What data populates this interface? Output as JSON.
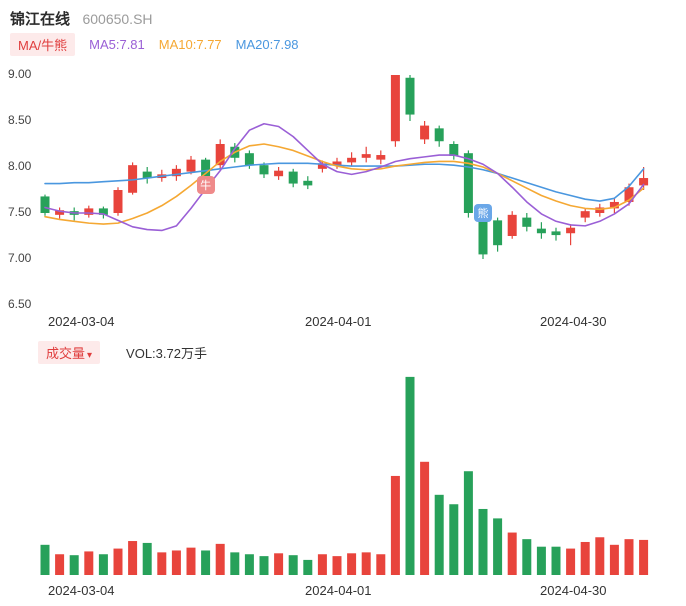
{
  "header": {
    "title": "锦江在线",
    "code": "600650.SH"
  },
  "legend": {
    "toggle_label": "MA/牛熊",
    "ma5": "MA5:7.81",
    "ma10": "MA10:7.77",
    "ma20": "MA20:7.98"
  },
  "volume_header": {
    "label": "成交量",
    "caret": "▾",
    "value": "VOL:3.72万手"
  },
  "colors": {
    "up": "#e8443c",
    "down": "#27a15a",
    "ma5": "#9a5fd6",
    "ma10": "#f5a833",
    "ma20": "#4a97df",
    "badge_bg": "#fdeaea",
    "badge_text": "#e03e3e",
    "bull_bg": "#ef8a8a",
    "bear_bg": "#6aa7e8"
  },
  "chart_data": {
    "type": "candlestick",
    "title": "锦江在线 600650.SH 日K线",
    "y_ticks": [
      "9.00",
      "8.50",
      "8.00",
      "7.50",
      "7.00",
      "6.50"
    ],
    "y_range": [
      6.5,
      9.0
    ],
    "x_labels": [
      "2024-03-04",
      "2024-04-01",
      "2024-04-30"
    ],
    "legend_entries": [
      "MA5",
      "MA10",
      "MA20"
    ],
    "candles_format": "[open, close, high, low] — red = up, green = down",
    "candles": [
      [
        7.68,
        7.5,
        7.7,
        7.47
      ],
      [
        7.48,
        7.53,
        7.56,
        7.44
      ],
      [
        7.52,
        7.48,
        7.56,
        7.42
      ],
      [
        7.48,
        7.55,
        7.58,
        7.45
      ],
      [
        7.55,
        7.48,
        7.57,
        7.44
      ],
      [
        7.5,
        7.75,
        7.78,
        7.47
      ],
      [
        7.72,
        8.02,
        8.05,
        7.7
      ],
      [
        7.95,
        7.88,
        8.0,
        7.82
      ],
      [
        7.88,
        7.92,
        7.97,
        7.84
      ],
      [
        7.9,
        7.98,
        8.02,
        7.85
      ],
      [
        7.95,
        8.08,
        8.12,
        7.92
      ],
      [
        8.08,
        7.88,
        8.1,
        7.8
      ],
      [
        8.02,
        8.25,
        8.3,
        7.98
      ],
      [
        8.22,
        8.1,
        8.26,
        8.05
      ],
      [
        8.15,
        8.02,
        8.18,
        7.98
      ],
      [
        8.02,
        7.92,
        8.05,
        7.88
      ],
      [
        7.9,
        7.96,
        8.0,
        7.86
      ],
      [
        7.95,
        7.82,
        7.98,
        7.78
      ],
      [
        7.85,
        7.8,
        7.9,
        7.76
      ],
      [
        7.98,
        8.04,
        8.07,
        7.94
      ],
      [
        8.02,
        8.06,
        8.1,
        7.98
      ],
      [
        8.05,
        8.1,
        8.16,
        8.01
      ],
      [
        8.1,
        8.14,
        8.22,
        8.05
      ],
      [
        8.08,
        8.13,
        8.18,
        8.03
      ],
      [
        8.28,
        9.0,
        9.0,
        8.22
      ],
      [
        8.97,
        8.57,
        9.0,
        8.5
      ],
      [
        8.3,
        8.45,
        8.5,
        8.25
      ],
      [
        8.42,
        8.28,
        8.45,
        8.22
      ],
      [
        8.25,
        8.12,
        8.28,
        8.08
      ],
      [
        8.15,
        7.5,
        8.18,
        7.45
      ],
      [
        7.45,
        7.05,
        7.48,
        7.0
      ],
      [
        7.42,
        7.15,
        7.45,
        7.08
      ],
      [
        7.25,
        7.48,
        7.52,
        7.22
      ],
      [
        7.45,
        7.35,
        7.5,
        7.3
      ],
      [
        7.33,
        7.28,
        7.4,
        7.22
      ],
      [
        7.3,
        7.26,
        7.34,
        7.2
      ],
      [
        7.28,
        7.34,
        7.38,
        7.15
      ],
      [
        7.45,
        7.52,
        7.55,
        7.4
      ],
      [
        7.5,
        7.56,
        7.6,
        7.46
      ],
      [
        7.55,
        7.62,
        7.66,
        7.5
      ],
      [
        7.62,
        7.78,
        7.82,
        7.58
      ],
      [
        7.8,
        7.88,
        8.0,
        7.75
      ]
    ],
    "ma5": [
      7.56,
      7.52,
      7.5,
      7.5,
      7.49,
      7.42,
      7.35,
      7.32,
      7.31,
      7.36,
      7.55,
      7.76,
      7.96,
      8.2,
      8.4,
      8.47,
      8.44,
      8.33,
      8.18,
      8.03,
      7.95,
      7.92,
      7.95,
      8.0,
      8.06,
      8.09,
      8.11,
      8.13,
      8.13,
      8.09,
      8.03,
      7.93,
      7.78,
      7.62,
      7.49,
      7.41,
      7.37,
      7.36,
      7.41,
      7.49,
      7.6,
      7.81
    ],
    "ma10": [
      7.46,
      7.43,
      7.41,
      7.39,
      7.38,
      7.39,
      7.44,
      7.5,
      7.58,
      7.68,
      7.8,
      7.93,
      8.06,
      8.16,
      8.23,
      8.25,
      8.22,
      8.18,
      8.12,
      8.06,
      8.01,
      7.98,
      7.97,
      7.98,
      8.01,
      8.03,
      8.05,
      8.06,
      8.06,
      8.04,
      8.0,
      7.93,
      7.85,
      7.77,
      7.69,
      7.63,
      7.58,
      7.55,
      7.54,
      7.56,
      7.64,
      7.77
    ],
    "ma20": [
      7.82,
      7.82,
      7.83,
      7.83,
      7.84,
      7.85,
      7.86,
      7.88,
      7.9,
      7.92,
      7.94,
      7.96,
      7.98,
      8.0,
      8.02,
      8.03,
      8.04,
      8.04,
      8.04,
      8.03,
      8.02,
      8.01,
      8.01,
      8.01,
      8.01,
      8.02,
      8.03,
      8.03,
      8.02,
      8.0,
      7.97,
      7.93,
      7.88,
      7.83,
      7.78,
      7.73,
      7.69,
      7.65,
      7.63,
      7.66,
      7.79,
      7.98
    ],
    "volumes_unit": "万手",
    "vol_max": 21.2,
    "volumes": [
      3.2,
      2.2,
      2.1,
      2.5,
      2.2,
      2.8,
      3.6,
      3.4,
      2.4,
      2.6,
      2.9,
      2.6,
      3.3,
      2.4,
      2.2,
      2.0,
      2.3,
      2.1,
      1.6,
      2.2,
      2.0,
      2.3,
      2.4,
      2.2,
      10.5,
      21.0,
      12.0,
      8.5,
      7.5,
      11.0,
      7.0,
      6.0,
      4.5,
      3.8,
      3.0,
      3.0,
      2.8,
      3.5,
      4.0,
      3.2,
      3.8,
      3.72
    ],
    "markers": [
      {
        "type": "bull",
        "glyph": "牛",
        "index": 11,
        "price": 7.8
      },
      {
        "type": "bear",
        "glyph": "熊",
        "index": 30,
        "price": 7.5
      }
    ]
  }
}
